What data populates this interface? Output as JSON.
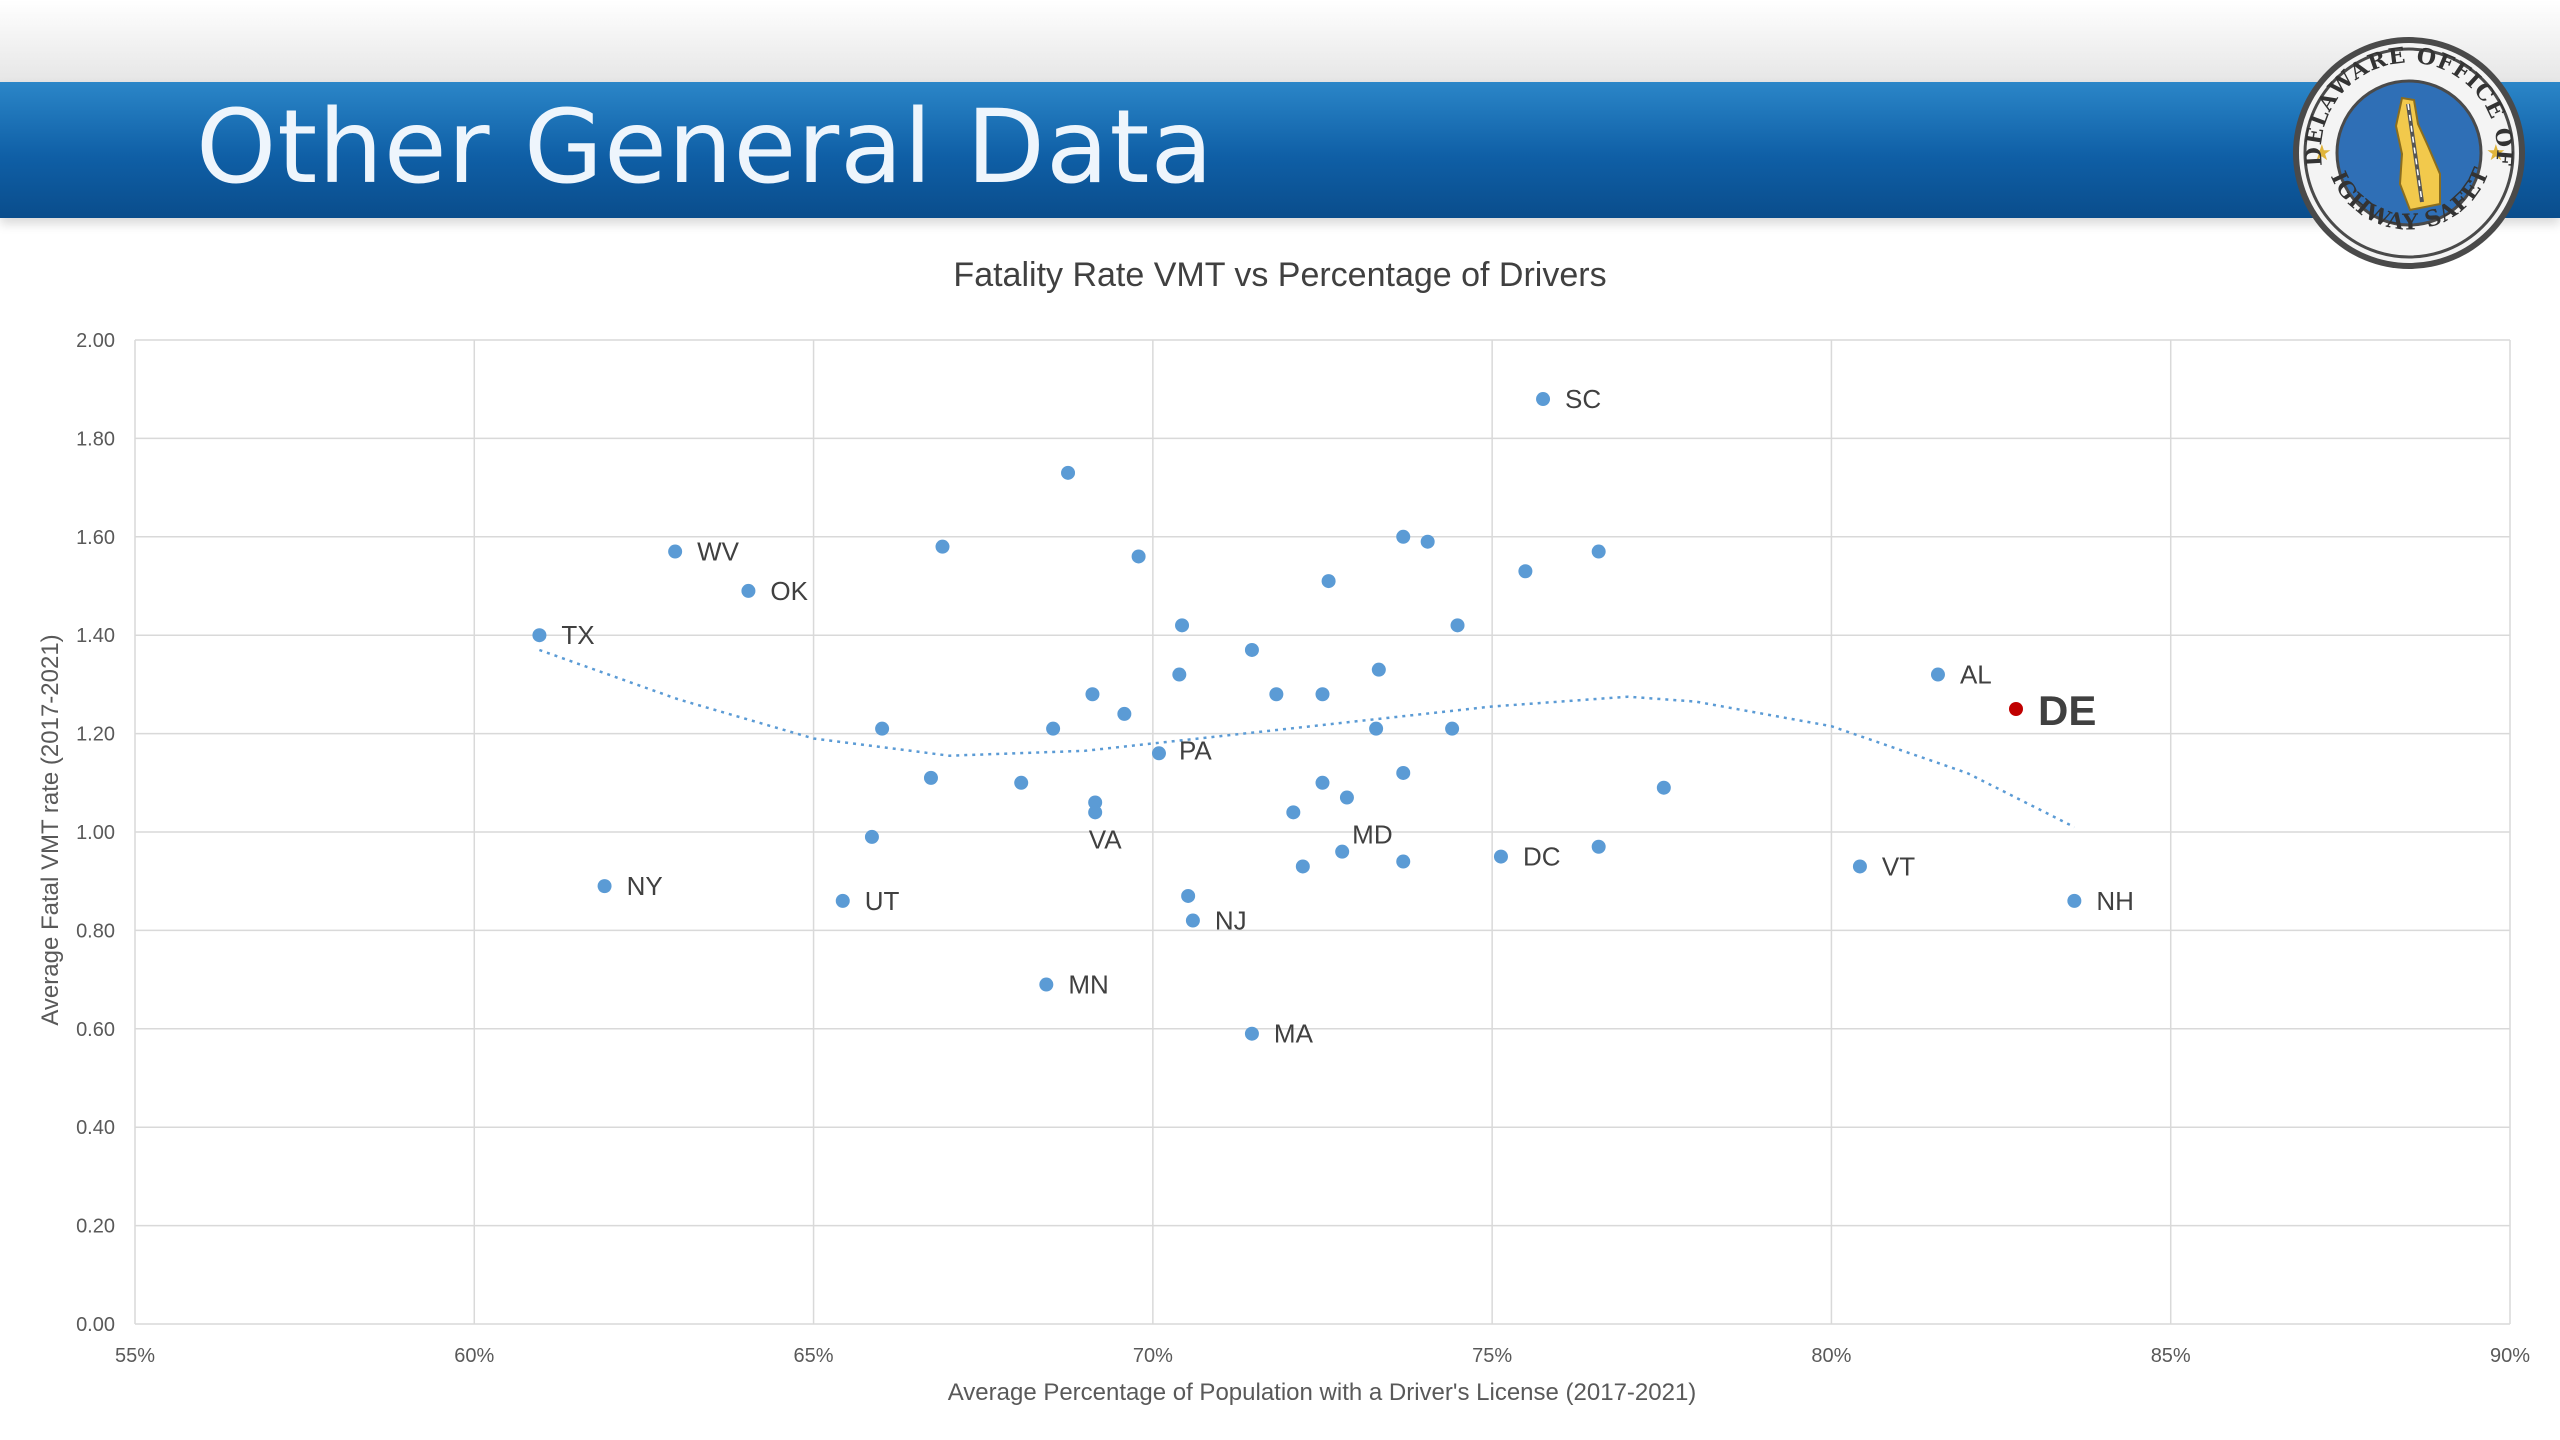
{
  "slide": {
    "title": "Other General Data",
    "seal_text": "DELAWARE OFFICE OF HIGHWAY SAFETY"
  },
  "colors": {
    "point": "#5b9bd5",
    "highlight": "#c00000",
    "trend": "#5b9bd5",
    "grid": "#d9d9d9",
    "title_bar": "#0f5fa6"
  },
  "chart_data": {
    "type": "scatter",
    "title": "Fatality Rate VMT vs Percentage of Drivers",
    "xlabel": "Average Percentage of Population with a Driver's License (2017-2021)",
    "ylabel": "Average Fatal VMT rate (2017-2021)",
    "xlim": [
      0.55,
      0.9
    ],
    "ylim": [
      0.0,
      2.0
    ],
    "x_ticks": [
      0.55,
      0.6,
      0.65,
      0.7,
      0.75,
      0.8,
      0.85,
      0.9
    ],
    "x_tick_labels": [
      "55%",
      "60%",
      "65%",
      "70%",
      "75%",
      "80%",
      "85%",
      "90%"
    ],
    "y_ticks": [
      0.0,
      0.2,
      0.4,
      0.6,
      0.8,
      1.0,
      1.2,
      1.4,
      1.6,
      1.8,
      2.0
    ],
    "y_tick_labels": [
      "0.00",
      "0.20",
      "0.40",
      "0.60",
      "0.80",
      "1.00",
      "1.20",
      "1.40",
      "1.60",
      "1.80",
      "2.00"
    ],
    "grid": true,
    "legend": "none",
    "trendline": "polynomial",
    "trend_points": [
      [
        0.6096,
        1.37
      ],
      [
        0.63,
        1.27
      ],
      [
        0.65,
        1.19
      ],
      [
        0.67,
        1.155
      ],
      [
        0.69,
        1.165
      ],
      [
        0.71,
        1.195
      ],
      [
        0.73,
        1.225
      ],
      [
        0.75,
        1.255
      ],
      [
        0.77,
        1.275
      ],
      [
        0.78,
        1.265
      ],
      [
        0.8,
        1.215
      ],
      [
        0.82,
        1.12
      ],
      [
        0.8358,
        1.01
      ]
    ],
    "points": [
      {
        "x": 0.7575,
        "y": 1.88,
        "label": "SC"
      },
      {
        "x": 0.6875,
        "y": 1.73,
        "label": ""
      },
      {
        "x": 0.6296,
        "y": 1.57,
        "label": "WV"
      },
      {
        "x": 0.6404,
        "y": 1.49,
        "label": "OK"
      },
      {
        "x": 0.6096,
        "y": 1.4,
        "label": "TX"
      },
      {
        "x": 0.669,
        "y": 1.58,
        "label": ""
      },
      {
        "x": 0.6979,
        "y": 1.56,
        "label": ""
      },
      {
        "x": 0.7369,
        "y": 1.6,
        "label": ""
      },
      {
        "x": 0.7405,
        "y": 1.59,
        "label": ""
      },
      {
        "x": 0.7549,
        "y": 1.53,
        "label": ""
      },
      {
        "x": 0.7657,
        "y": 1.57,
        "label": ""
      },
      {
        "x": 0.7259,
        "y": 1.51,
        "label": ""
      },
      {
        "x": 0.7043,
        "y": 1.42,
        "label": ""
      },
      {
        "x": 0.7449,
        "y": 1.42,
        "label": ""
      },
      {
        "x": 0.7146,
        "y": 1.37,
        "label": ""
      },
      {
        "x": 0.7039,
        "y": 1.32,
        "label": ""
      },
      {
        "x": 0.7333,
        "y": 1.33,
        "label": ""
      },
      {
        "x": 0.6911,
        "y": 1.28,
        "label": ""
      },
      {
        "x": 0.7182,
        "y": 1.28,
        "label": ""
      },
      {
        "x": 0.725,
        "y": 1.28,
        "label": ""
      },
      {
        "x": 0.6958,
        "y": 1.24,
        "label": ""
      },
      {
        "x": 0.6601,
        "y": 1.21,
        "label": ""
      },
      {
        "x": 0.6853,
        "y": 1.21,
        "label": ""
      },
      {
        "x": 0.7329,
        "y": 1.21,
        "label": ""
      },
      {
        "x": 0.7441,
        "y": 1.21,
        "label": ""
      },
      {
        "x": 0.7009,
        "y": 1.16,
        "label": "PA"
      },
      {
        "x": 0.6673,
        "y": 1.11,
        "label": ""
      },
      {
        "x": 0.6806,
        "y": 1.1,
        "label": ""
      },
      {
        "x": 0.7369,
        "y": 1.12,
        "label": ""
      },
      {
        "x": 0.725,
        "y": 1.1,
        "label": ""
      },
      {
        "x": 0.6915,
        "y": 1.06,
        "label": ""
      },
      {
        "x": 0.6915,
        "y": 1.04,
        "label": "VA"
      },
      {
        "x": 0.7286,
        "y": 1.07,
        "label": ""
      },
      {
        "x": 0.7207,
        "y": 1.04,
        "label": ""
      },
      {
        "x": 0.7753,
        "y": 1.09,
        "label": ""
      },
      {
        "x": 0.6586,
        "y": 0.99,
        "label": ""
      },
      {
        "x": 0.7279,
        "y": 0.96,
        "label": "MD"
      },
      {
        "x": 0.7369,
        "y": 0.94,
        "label": ""
      },
      {
        "x": 0.7221,
        "y": 0.93,
        "label": ""
      },
      {
        "x": 0.7513,
        "y": 0.95,
        "label": "DC"
      },
      {
        "x": 0.7657,
        "y": 0.97,
        "label": ""
      },
      {
        "x": 0.6192,
        "y": 0.89,
        "label": "NY"
      },
      {
        "x": 0.6543,
        "y": 0.86,
        "label": "UT"
      },
      {
        "x": 0.7052,
        "y": 0.87,
        "label": ""
      },
      {
        "x": 0.7059,
        "y": 0.82,
        "label": "NJ"
      },
      {
        "x": 0.6843,
        "y": 0.69,
        "label": "MN"
      },
      {
        "x": 0.7146,
        "y": 0.59,
        "label": "MA"
      },
      {
        "x": 0.8042,
        "y": 0.93,
        "label": "VT"
      },
      {
        "x": 0.8358,
        "y": 0.86,
        "label": "NH"
      },
      {
        "x": 0.8157,
        "y": 1.32,
        "label": "AL"
      },
      {
        "x": 0.8272,
        "y": 1.25,
        "label": "DE",
        "highlight": true
      }
    ]
  }
}
